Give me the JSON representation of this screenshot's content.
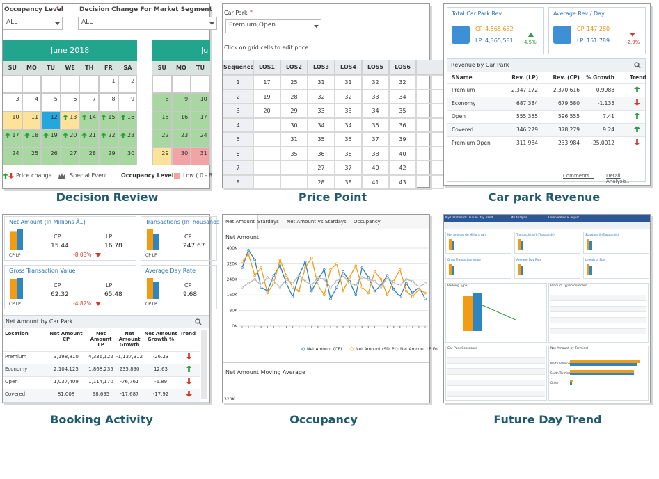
{
  "decision_review": {
    "caption": "Decision Review",
    "occupancy_label": "Occupancy Level",
    "required": "*",
    "segment_label": "Decision Change For Market Segment",
    "occupancy_value": "ALL",
    "segment_value": "ALL",
    "calendars": [
      {
        "month": "June 2018",
        "weekdays": [
          "SU",
          "MO",
          "TU",
          "WE",
          "TH",
          "FR",
          "SA"
        ],
        "weeks": [
          [
            null,
            null,
            null,
            null,
            null,
            "1",
            "2"
          ],
          [
            "3",
            "4",
            "5",
            "6",
            "7",
            "8",
            "9"
          ],
          [
            "10",
            "11",
            "12",
            "13",
            "14",
            "15",
            "16"
          ],
          [
            "17",
            "18",
            "19",
            "20",
            "21",
            "22",
            "23"
          ],
          [
            "24",
            "25",
            "26",
            "27",
            "28",
            "29",
            "30"
          ]
        ]
      },
      {
        "month": "Ju",
        "weekdays": [
          "SU",
          "MO",
          "TU"
        ],
        "weeks": [
          [
            null,
            null,
            null
          ],
          [
            "8",
            "9",
            "10"
          ],
          [
            "15",
            "16",
            "17"
          ],
          [
            "22",
            "23",
            "24"
          ],
          [
            "29",
            "30",
            "31"
          ]
        ]
      }
    ],
    "legend": {
      "price_change": "Price change",
      "special_event": "Special Event",
      "occupancy": "Occupancy Level :",
      "low": "Low ( 0 - 8"
    }
  },
  "price_point": {
    "caption": "Price Point",
    "car_park_label": "Car Park",
    "required": "*",
    "car_park_value": "Premium Open",
    "hint": "Click on grid cells to edit price.",
    "columns": [
      "Sequence",
      "LOS1",
      "LOS2",
      "LOS3",
      "LOS4",
      "LOS5",
      "LOS6"
    ],
    "rows": [
      [
        "1",
        17,
        25,
        31,
        31,
        32,
        32
      ],
      [
        "2",
        19,
        28,
        32,
        32,
        33,
        34
      ],
      [
        "3",
        20,
        29,
        33,
        33,
        34,
        35
      ],
      [
        "4",
        null,
        30,
        34,
        34,
        35,
        36
      ],
      [
        "5",
        null,
        31,
        35,
        35,
        37,
        39
      ],
      [
        "6",
        null,
        35,
        36,
        36,
        38,
        40
      ],
      [
        "7",
        null,
        null,
        27,
        37,
        40,
        42
      ],
      [
        "8",
        null,
        null,
        28,
        38,
        41,
        43
      ]
    ]
  },
  "car_park_revenue": {
    "caption": "Car park Revenue",
    "kpis": [
      {
        "title": "Total Car Park Rev.",
        "cp_label": "CP",
        "cp": "4,565,682",
        "lp_label": "LP",
        "lp": "4,365,581",
        "change": "4.5%",
        "trend": "up"
      },
      {
        "title": "Average Rev / Day",
        "cp_label": "CP",
        "cp": "147,280",
        "lp_label": "LP",
        "lp": "151,789",
        "change": "-2.9%",
        "trend": "down"
      }
    ],
    "table_title": "Revenue by Car Park",
    "columns": [
      "SName",
      "Rev. (LP)",
      "Rev. (CP)",
      "% Growth",
      "Trend"
    ],
    "rows": [
      {
        "cells": [
          "Premium",
          "2,347,172",
          "2,370,616",
          "0.9988"
        ],
        "trend": "up"
      },
      {
        "cells": [
          "Economy",
          "687,384",
          "679,580",
          "-1.135"
        ],
        "trend": "down"
      },
      {
        "cells": [
          "Open",
          "555,355",
          "596,555",
          "7.41"
        ],
        "trend": "up"
      },
      {
        "cells": [
          "Covered",
          "346,279",
          "378,279",
          "9.24"
        ],
        "trend": "up"
      },
      {
        "cells": [
          "Premium Open",
          "311,984",
          "233,984",
          "-25.0012"
        ],
        "trend": "down"
      }
    ],
    "links": [
      "Comments...",
      "Detail Analysis..."
    ]
  },
  "booking_activity": {
    "caption": "Booking Activity",
    "kpis": [
      {
        "title": "Net Amount (In Millions Â£)",
        "cp_label": "CP",
        "cp": 15.44,
        "lp_label": "LP",
        "lp": 16.78,
        "change": "-8.03%"
      },
      {
        "title": "Transactions (InThousands",
        "cp_label": "CP",
        "cp": 247.67
      },
      {
        "title": "Gross Transaction Value",
        "cp_label": "CP",
        "cp": 62.32,
        "lp_label": "LP",
        "lp": 65.48,
        "change": "-4.82%"
      },
      {
        "title": "Average Day Rate",
        "cp_label": "CP",
        "cp": 9.68
      }
    ],
    "bar_legend": "CP LP",
    "table_title": "Net Amount by Car Park",
    "columns": [
      "Location",
      "Net Amount CP",
      "Net Amount LP",
      "Net Amount Growth",
      "Net Amount Growth %",
      "Trend"
    ],
    "rows": [
      {
        "cells": [
          "Premium",
          "3,198,810",
          "4,336,122",
          "-1,137,312",
          "-26.23"
        ],
        "trend": "down"
      },
      {
        "cells": [
          "Economy",
          "2,104,125",
          "1,868,235",
          "235,890",
          "12.63"
        ],
        "trend": "up"
      },
      {
        "cells": [
          "Open",
          "1,037,409",
          "1,114,170",
          "-76,761",
          "-6.89"
        ],
        "trend": "down"
      },
      {
        "cells": [
          "Covered",
          "81,008",
          "98,695",
          "-17,687",
          "-17.92"
        ],
        "trend": "down"
      }
    ]
  },
  "occupancy": {
    "caption": "Occupancy",
    "tabs": [
      "Net Amount",
      "Stardays",
      "Net Amount Vs Stardays",
      "Occupancy"
    ],
    "chart_data": {
      "type": "line",
      "title": "Net Amount",
      "ylim": [
        0,
        400000
      ],
      "yticks": [
        {
          "value": 0,
          "label": "0K"
        },
        {
          "value": 80000,
          "label": "80K"
        },
        {
          "value": 160000,
          "label": "160K"
        },
        {
          "value": 240000,
          "label": "240K"
        },
        {
          "value": 320000,
          "label": "320K"
        },
        {
          "value": 400000,
          "label": "400K"
        }
      ],
      "series": [
        {
          "name": "Net Amount (CP)",
          "color": "#2f7fc1",
          "values": [
            300000,
            390000,
            340000,
            200000,
            180000,
            260000,
            310000,
            220000,
            150000,
            260000,
            330000,
            180000,
            240000,
            290000,
            140000,
            200000,
            280000,
            230000,
            160000,
            300000,
            250000,
            180000,
            210000,
            260000,
            190000,
            150000,
            220000,
            170000,
            200000,
            140000
          ]
        },
        {
          "name": "Net Amount (SDLP)",
          "color": "#f39c12",
          "values": [
            330000,
            370000,
            260000,
            300000,
            170000,
            220000,
            340000,
            260000,
            200000,
            180000,
            300000,
            350000,
            210000,
            160000,
            290000,
            320000,
            180000,
            250000,
            310000,
            200000,
            170000,
            280000,
            240000,
            160000,
            230000,
            290000,
            180000,
            150000,
            190000,
            170000
          ]
        },
        {
          "name": "Net Amount LP Fo",
          "color": "#b5b5b5",
          "values": [
            200000,
            220000,
            240000,
            210000,
            250000,
            230000,
            200000,
            240000,
            220000,
            260000,
            230000,
            210000,
            250000,
            240000,
            200000,
            230000,
            260000,
            220000,
            210000,
            250000,
            240000,
            230000,
            200000,
            250000,
            220000,
            210000,
            240000,
            230000,
            200000,
            220000
          ]
        }
      ]
    },
    "moving_title": "Net Amount Moving Average",
    "moving_tick": "320K"
  },
  "future_day_trend": {
    "caption": "Future Day Trend",
    "nav": [
      "My Dashboards",
      "Future Day Trend",
      "My Analysis",
      "Comparative & Adjust"
    ],
    "kpis": [
      "Net Amount (In Millions Â£)",
      "Transactions (InThousands)",
      "Staydays (InThousands)",
      "Gross Transaction Value",
      "Average Day Rate",
      "Length of Stay"
    ],
    "panels": [
      "Parking Type",
      "Product Type Scorecard",
      "Car Park Scorecard",
      "Net Amount by Terminal"
    ],
    "terminals": [
      "North Terminal",
      "South Terminal",
      "Other"
    ]
  }
}
